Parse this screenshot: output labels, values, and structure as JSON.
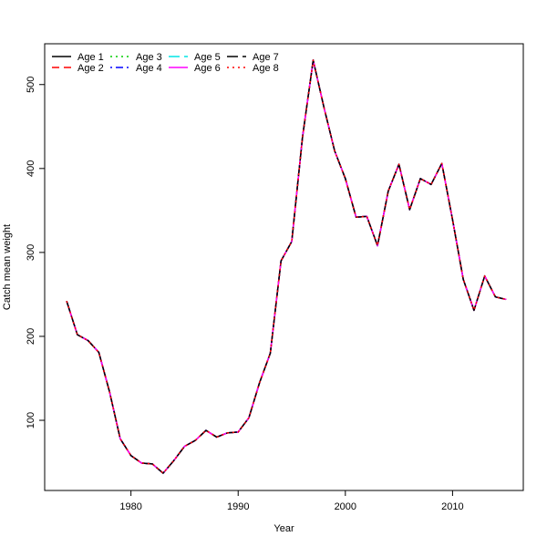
{
  "chart_data": {
    "type": "line",
    "xlabel": "Year",
    "ylabel": "Catch mean weight",
    "xlim": [
      1972.4,
      1976.6
    ],
    "ylim": [
      16.4,
      548.6
    ],
    "xticks": [
      1980,
      1990,
      2000,
      2010
    ],
    "yticks": [
      100,
      200,
      300,
      400,
      500
    ],
    "grid": false,
    "legend": "top-left",
    "x": [
      1974,
      1975,
      1976,
      1977,
      1978,
      1979,
      1980,
      1981,
      1982,
      1983,
      1984,
      1985,
      1986,
      1987,
      1988,
      1989,
      1990,
      1991,
      1992,
      1993,
      1994,
      1995,
      1996,
      1997,
      1998,
      1999,
      2000,
      2001,
      2002,
      2003,
      2004,
      2005,
      2006,
      2007,
      2008,
      2009,
      2010,
      2011,
      2012,
      2013,
      2014,
      2015
    ],
    "values": [
      242,
      202,
      195,
      181,
      134,
      78,
      58,
      49,
      48,
      37,
      52,
      69,
      76,
      88,
      80,
      85,
      86,
      103,
      145,
      180,
      290,
      313,
      437,
      529,
      473,
      421,
      388,
      342,
      343,
      308,
      373,
      405,
      351,
      388,
      381,
      406,
      339,
      268,
      231,
      272,
      247,
      244
    ],
    "series": [
      {
        "name": "Age 1",
        "color": "#000000",
        "dash": "solid"
      },
      {
        "name": "Age 2",
        "color": "#ff0000",
        "dash": "dashed"
      },
      {
        "name": "Age 3",
        "color": "#00cd00",
        "dash": "dotted"
      },
      {
        "name": "Age 4",
        "color": "#0000ff",
        "dash": "dotdash"
      },
      {
        "name": "Age 5",
        "color": "#00e5e5",
        "dash": "longdash"
      },
      {
        "name": "Age 6",
        "color": "#ff00ff",
        "dash": "solid"
      },
      {
        "name": "Age 7",
        "color": "#000000",
        "dash": "longdash"
      },
      {
        "name": "Age 8",
        "color": "#ff0000",
        "dash": "dotted"
      }
    ]
  }
}
